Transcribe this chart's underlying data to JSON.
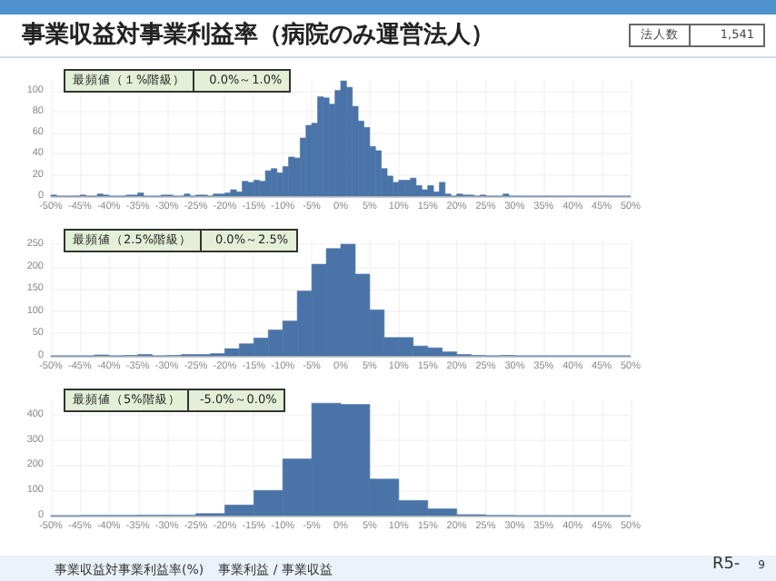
{
  "chart_data": [
    {
      "type": "histogram",
      "title": "事業収益対事業利益率（病院のみ運営法人）",
      "annotations": [
        "法人数",
        "1,541",
        "最頻値（１%階級）",
        "0.0%～1.0%"
      ],
      "color": "#4a74a8",
      "grid": true,
      "bins": [
        -50,
        -49,
        -48,
        -47,
        -46,
        -45,
        -44,
        -43,
        -42,
        -41,
        -40,
        -39,
        -38,
        -37,
        -36,
        -35,
        -34,
        -33,
        -32,
        -31,
        -30,
        -29,
        -28,
        -27,
        -26,
        -25,
        -24,
        -23,
        -22,
        -21,
        -20,
        -19,
        -18,
        -17,
        -16,
        -15,
        -14,
        -13,
        -12,
        -11,
        -10,
        -9,
        -8,
        -7,
        -6,
        -5,
        -4,
        -3,
        -2,
        -1,
        0,
        1,
        2,
        3,
        4,
        5,
        6,
        7,
        8,
        9,
        10,
        11,
        12,
        13,
        14,
        15,
        16,
        17,
        18,
        19,
        20,
        21,
        22,
        23,
        24,
        25,
        26,
        27,
        28,
        29,
        30,
        31,
        32,
        33,
        34,
        35,
        36,
        37,
        38,
        39,
        40,
        41,
        42,
        43,
        44,
        45,
        46,
        47,
        48,
        49,
        50
      ],
      "values": [
        1,
        0,
        0,
        0,
        0,
        1,
        0,
        0,
        2,
        1,
        0,
        0,
        0,
        1,
        1,
        3,
        0,
        0,
        0,
        1,
        1,
        0,
        0,
        2,
        0,
        1,
        1,
        0,
        2,
        2,
        3,
        6,
        4,
        14,
        13,
        15,
        14,
        24,
        26,
        22,
        28,
        37,
        36,
        55,
        67,
        69,
        94,
        93,
        87,
        100,
        109,
        103,
        85,
        71,
        65,
        47,
        43,
        26,
        19,
        13,
        15,
        15,
        17,
        10,
        6,
        10,
        4,
        13,
        2,
        0,
        2,
        1,
        1,
        0,
        1,
        0,
        0,
        0,
        2,
        0,
        0,
        0,
        0,
        0,
        0,
        0,
        0,
        0,
        0,
        0,
        0,
        0,
        0,
        0,
        0,
        0,
        0,
        0,
        0,
        0
      ],
      "xlim": [
        -50,
        50
      ],
      "ylim": [
        0,
        110
      ],
      "yticks": [
        0,
        20,
        40,
        60,
        80,
        100
      ],
      "xticks": [
        {
          "value": -50,
          "label": "-50%"
        },
        {
          "value": -45,
          "label": "-45%"
        },
        {
          "value": -40,
          "label": "-40%"
        },
        {
          "value": -35,
          "label": "-35%"
        },
        {
          "value": -30,
          "label": "-30%"
        },
        {
          "value": -25,
          "label": "-25%"
        },
        {
          "value": -20,
          "label": "-20%"
        },
        {
          "value": -15,
          "label": "-15%"
        },
        {
          "value": -10,
          "label": "-10%"
        },
        {
          "value": -5,
          "label": "-5%"
        },
        {
          "value": 0,
          "label": "0%"
        },
        {
          "value": 5,
          "label": "5%"
        },
        {
          "value": 10,
          "label": "10%"
        },
        {
          "value": 15,
          "label": "15%"
        },
        {
          "value": 20,
          "label": "20%"
        },
        {
          "value": 25,
          "label": "25%"
        },
        {
          "value": 30,
          "label": "30%"
        },
        {
          "value": 35,
          "label": "35%"
        },
        {
          "value": 40,
          "label": "40%"
        },
        {
          "value": 45,
          "label": "45%"
        },
        {
          "value": 50,
          "label": "50%"
        }
      ]
    },
    {
      "type": "histogram",
      "annotations": [
        "最頻値（2.5%階級）",
        "0.0%～2.5%"
      ],
      "color": "#4a74a8",
      "grid": true,
      "bins": [
        -50,
        -47.5,
        -45,
        -42.5,
        -40,
        -37.5,
        -35,
        -32.5,
        -30,
        -27.5,
        -25,
        -22.5,
        -20,
        -17.5,
        -15,
        -12.5,
        -10,
        -7.5,
        -5,
        -2.5,
        0,
        2.5,
        5,
        7.5,
        10,
        12.5,
        15,
        17.5,
        20,
        22.5,
        25,
        27.5,
        30,
        32.5,
        35,
        37.5,
        40,
        42.5,
        45,
        47.5,
        50
      ],
      "values": [
        0,
        0,
        0,
        2,
        0,
        1,
        3,
        0,
        1,
        3,
        3,
        5,
        16,
        27,
        40,
        58,
        78,
        145,
        205,
        240,
        250,
        183,
        103,
        41,
        41,
        22,
        18,
        9,
        3,
        1,
        0,
        1,
        0,
        0,
        0,
        0,
        0,
        0,
        0,
        0
      ],
      "xlim": [
        -50,
        50
      ],
      "ylim": [
        0,
        260
      ],
      "yticks": [
        0,
        50,
        100,
        150,
        200,
        250
      ],
      "xticks": [
        {
          "value": -50,
          "label": "-50%"
        },
        {
          "value": -45,
          "label": "-45%"
        },
        {
          "value": -40,
          "label": "-40%"
        },
        {
          "value": -35,
          "label": "-35%"
        },
        {
          "value": -30,
          "label": "-30%"
        },
        {
          "value": -25,
          "label": "-25%"
        },
        {
          "value": -20,
          "label": "-20%"
        },
        {
          "value": -15,
          "label": "-15%"
        },
        {
          "value": -10,
          "label": "-10%"
        },
        {
          "value": -5,
          "label": "-5%"
        },
        {
          "value": 0,
          "label": "0%"
        },
        {
          "value": 5,
          "label": "5%"
        },
        {
          "value": 10,
          "label": "10%"
        },
        {
          "value": 15,
          "label": "15%"
        },
        {
          "value": 20,
          "label": "20%"
        },
        {
          "value": 25,
          "label": "25%"
        },
        {
          "value": 30,
          "label": "30%"
        },
        {
          "value": 35,
          "label": "35%"
        },
        {
          "value": 40,
          "label": "40%"
        },
        {
          "value": 45,
          "label": "45%"
        },
        {
          "value": 50,
          "label": "50%"
        }
      ]
    },
    {
      "type": "histogram",
      "annotations": [
        "最頻値（5%階級）",
        "-5.0%～0.0%",
        "事業収益対事業利益率(%)",
        "事業利益 / 事業収益",
        "R5-",
        "9"
      ],
      "color": "#4a74a8",
      "grid": true,
      "bins": [
        -50,
        -45,
        -40,
        -35,
        -30,
        -25,
        -20,
        -15,
        -10,
        -5,
        0,
        5,
        10,
        15,
        20,
        25,
        30,
        35,
        40,
        45,
        50
      ],
      "values": [
        0,
        1,
        1,
        2,
        2,
        8,
        42,
        100,
        225,
        445,
        440,
        145,
        60,
        27,
        4,
        1,
        0,
        0,
        0,
        0
      ],
      "xlim": [
        -50,
        50
      ],
      "ylim": [
        0,
        460
      ],
      "yticks": [
        0,
        100,
        200,
        300,
        400
      ],
      "xticks": [
        {
          "value": -50,
          "label": "-50%"
        },
        {
          "value": -45,
          "label": "-45%"
        },
        {
          "value": -40,
          "label": "-40%"
        },
        {
          "value": -35,
          "label": "-35%"
        },
        {
          "value": -30,
          "label": "-30%"
        },
        {
          "value": -25,
          "label": "-25%"
        },
        {
          "value": -20,
          "label": "-20%"
        },
        {
          "value": -15,
          "label": "-15%"
        },
        {
          "value": -10,
          "label": "-10%"
        },
        {
          "value": -5,
          "label": "-5%"
        },
        {
          "value": 0,
          "label": "0%"
        },
        {
          "value": 5,
          "label": "5%"
        },
        {
          "value": 10,
          "label": "10%"
        },
        {
          "value": 15,
          "label": "15%"
        },
        {
          "value": 20,
          "label": "20%"
        },
        {
          "value": 25,
          "label": "25%"
        },
        {
          "value": 30,
          "label": "30%"
        },
        {
          "value": 35,
          "label": "35%"
        },
        {
          "value": 40,
          "label": "40%"
        },
        {
          "value": 45,
          "label": "45%"
        },
        {
          "value": 50,
          "label": "50%"
        }
      ]
    }
  ]
}
